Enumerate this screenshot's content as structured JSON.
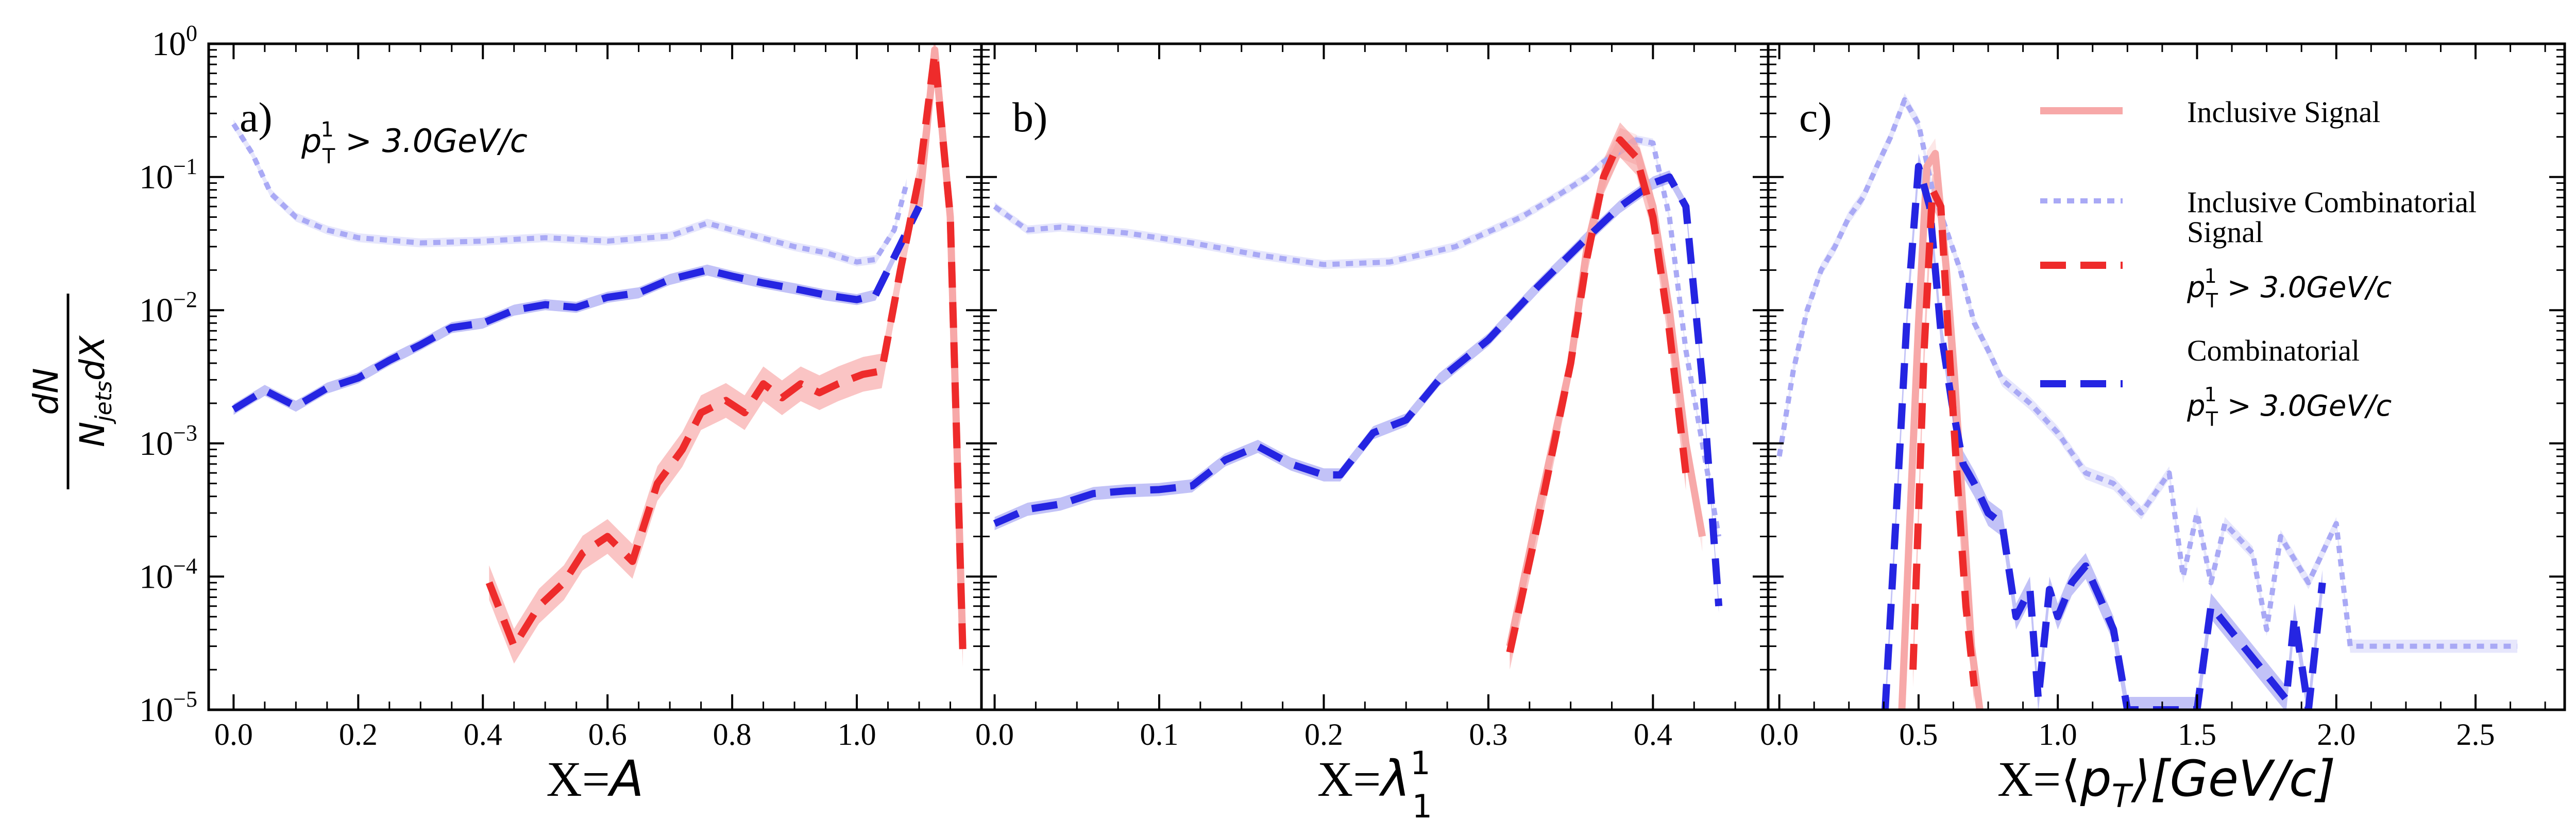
{
  "figure": {
    "ylabel_num": "dN",
    "ylabel_den": "N_jets dX",
    "ylabel_den_main": "N",
    "ylabel_den_sub": "jets",
    "ylabel_den_tail": "dX"
  },
  "styles": {
    "inclusive_signal": {
      "color": "#f7a8a8",
      "dash": "solid"
    },
    "inclusive_combinatorial": {
      "color": "#a9a9f5",
      "dash": "dotted"
    },
    "signal": {
      "color": "#ee2b2b",
      "dash": "dashed"
    },
    "combinatorial": {
      "color": "#2525e2",
      "dash": "dashed"
    }
  },
  "legend": {
    "items": [
      {
        "key": "inclusive_signal",
        "line1": "Inclusive Signal"
      },
      {
        "key": "inclusive_combinatorial",
        "line1": "Inclusive Combinatorial"
      },
      {
        "key": "signal",
        "line1": "Signal",
        "cut": "p_T^1 > 3.0GeV/c"
      },
      {
        "key": "combinatorial",
        "line1": "Combinatorial",
        "cut": "p_T^1 > 3.0GeV/c"
      }
    ],
    "cut_parts": {
      "p": "p",
      "sub": "T",
      "sup": "1",
      "rest": " > 3.0GeV/c"
    }
  },
  "chart_data": [
    {
      "type": "line",
      "panel_label": "a)",
      "annotation": "p_T^1 > 3.0GeV/c",
      "title": "",
      "xlabel": "X=A",
      "xlabel_parts": {
        "prefix": "X=",
        "var": "A"
      },
      "ylabel": "dN / (N_jets dX)",
      "yscale": "log",
      "xlim": [
        -0.04,
        1.2
      ],
      "ylim": [
        1e-05,
        1
      ],
      "xticks": [
        0.0,
        0.2,
        0.4,
        0.6,
        0.8,
        1.0
      ],
      "xtick_labels": [
        "0.0",
        "0.2",
        "0.4",
        "0.6",
        "0.8",
        "1.0"
      ],
      "ytick_labels": [
        {
          "base": "10",
          "exp": "0"
        },
        {
          "base": "10",
          "exp": "−1"
        },
        {
          "base": "10",
          "exp": "−2"
        },
        {
          "base": "10",
          "exp": "−3"
        },
        {
          "base": "10",
          "exp": "−4"
        },
        {
          "base": "10",
          "exp": "−5"
        }
      ],
      "series": [
        {
          "key": "inclusive_signal",
          "name": "Inclusive Signal",
          "x": [
            1.1,
            1.125,
            1.15,
            1.17
          ],
          "y": [
            0.06,
            0.9,
            0.05,
            3e-05
          ],
          "band": 0.3
        },
        {
          "key": "inclusive_combinatorial",
          "name": "Inclusive Combinatorial",
          "x": [
            0.0,
            0.03,
            0.06,
            0.1,
            0.15,
            0.2,
            0.3,
            0.4,
            0.5,
            0.6,
            0.7,
            0.76,
            0.8,
            0.9,
            0.95,
            1.0,
            1.03,
            1.06,
            1.08
          ],
          "y": [
            0.25,
            0.15,
            0.075,
            0.05,
            0.04,
            0.035,
            0.032,
            0.033,
            0.035,
            0.033,
            0.036,
            0.045,
            0.04,
            0.03,
            0.027,
            0.023,
            0.024,
            0.04,
            0.09
          ],
          "band": 0.08
        },
        {
          "key": "signal",
          "name": "Signal",
          "x": [
            0.41,
            0.45,
            0.49,
            0.53,
            0.56,
            0.6,
            0.64,
            0.68,
            0.72,
            0.75,
            0.79,
            0.82,
            0.85,
            0.88,
            0.91,
            0.94,
            0.97,
            1.01,
            1.04,
            1.07,
            1.1,
            1.125,
            1.15,
            1.17
          ],
          "y": [
            9e-05,
            3e-05,
            6e-05,
            9e-05,
            0.00015,
            0.0002,
            0.00013,
            0.0005,
            0.0009,
            0.0017,
            0.0021,
            0.0017,
            0.0028,
            0.0022,
            0.0028,
            0.0024,
            0.0028,
            0.0033,
            0.0035,
            0.02,
            0.1,
            0.85,
            0.05,
            2.8e-05
          ],
          "band": 0.35
        },
        {
          "key": "combinatorial",
          "name": "Combinatorial",
          "x": [
            0.0,
            0.05,
            0.1,
            0.15,
            0.2,
            0.25,
            0.3,
            0.35,
            0.4,
            0.45,
            0.5,
            0.55,
            0.6,
            0.65,
            0.7,
            0.76,
            0.8,
            0.85,
            0.9,
            0.95,
            1.0,
            1.03,
            1.06,
            1.1
          ],
          "y": [
            0.0018,
            0.0025,
            0.0019,
            0.0026,
            0.0031,
            0.0042,
            0.0055,
            0.0074,
            0.008,
            0.01,
            0.011,
            0.0105,
            0.0125,
            0.0135,
            0.017,
            0.02,
            0.018,
            0.016,
            0.0145,
            0.013,
            0.012,
            0.013,
            0.025,
            0.06
          ],
          "band": 0.1
        }
      ]
    },
    {
      "type": "line",
      "panel_label": "b)",
      "title": "",
      "xlabel": "X=λ_1^1",
      "xlabel_parts": {
        "prefix": "X=",
        "var": "λ",
        "sub": "1",
        "sup": "1"
      },
      "ylabel": "dN / (N_jets dX)",
      "yscale": "log",
      "xlim": [
        -0.008,
        0.47
      ],
      "ylim": [
        1e-05,
        1
      ],
      "xticks": [
        0.0,
        0.1,
        0.2,
        0.3,
        0.4
      ],
      "xtick_labels": [
        "0.0",
        "0.1",
        "0.2",
        "0.3",
        "0.4"
      ],
      "series": [
        {
          "key": "inclusive_signal",
          "name": "Inclusive Signal",
          "x": [
            0.313,
            0.33,
            0.35,
            0.36,
            0.37,
            0.38,
            0.39,
            0.4,
            0.41,
            0.42,
            0.43
          ],
          "y": [
            3e-05,
            0.0003,
            0.004,
            0.03,
            0.1,
            0.18,
            0.16,
            0.06,
            0.01,
            0.001,
            0.0002
          ],
          "band": 0.3
        },
        {
          "key": "inclusive_combinatorial",
          "name": "Inclusive Combinatorial",
          "x": [
            0.0,
            0.02,
            0.04,
            0.08,
            0.12,
            0.16,
            0.2,
            0.24,
            0.28,
            0.32,
            0.34,
            0.36,
            0.37,
            0.39,
            0.4,
            0.41,
            0.42,
            0.44
          ],
          "y": [
            0.06,
            0.04,
            0.042,
            0.038,
            0.032,
            0.026,
            0.022,
            0.023,
            0.03,
            0.05,
            0.07,
            0.1,
            0.13,
            0.19,
            0.18,
            0.05,
            0.005,
            0.0002
          ],
          "band": 0.08
        },
        {
          "key": "signal",
          "name": "Signal",
          "x": [
            0.313,
            0.33,
            0.35,
            0.36,
            0.37,
            0.38,
            0.39,
            0.4,
            0.41,
            0.42
          ],
          "y": [
            2.7e-05,
            0.00025,
            0.004,
            0.025,
            0.1,
            0.19,
            0.14,
            0.05,
            0.007,
            0.0006
          ],
          "band": 0.35
        },
        {
          "key": "combinatorial",
          "name": "Combinatorial",
          "x": [
            0.0,
            0.02,
            0.04,
            0.06,
            0.08,
            0.1,
            0.12,
            0.14,
            0.16,
            0.18,
            0.2,
            0.21,
            0.23,
            0.25,
            0.27,
            0.3,
            0.33,
            0.36,
            0.38,
            0.4,
            0.41,
            0.42,
            0.43,
            0.44
          ],
          "y": [
            0.00025,
            0.00032,
            0.00035,
            0.00042,
            0.00044,
            0.00045,
            0.00048,
            0.00075,
            0.00095,
            0.0007,
            0.00058,
            0.00058,
            0.0012,
            0.0015,
            0.003,
            0.006,
            0.015,
            0.035,
            0.06,
            0.09,
            0.1,
            0.06,
            0.003,
            6e-05
          ],
          "band": 0.12
        }
      ]
    },
    {
      "type": "line",
      "panel_label": "c)",
      "title": "",
      "xlabel": "X=⟨p_T⟩[GeV/c]",
      "xlabel_parts": {
        "prefix": "X=",
        "open": "⟨",
        "var": "p",
        "sub": "T",
        "close": "⟩[GeV/c]"
      },
      "ylabel": "dN / (N_jets dX)",
      "yscale": "log",
      "xlim": [
        -0.04,
        2.82
      ],
      "ylim": [
        1e-05,
        1
      ],
      "xticks": [
        0.0,
        0.5,
        1.0,
        1.5,
        2.0,
        2.5
      ],
      "xtick_labels": [
        "0.0",
        "0.5",
        "1.0",
        "1.5",
        "2.0",
        "2.5"
      ],
      "series": [
        {
          "key": "inclusive_signal",
          "name": "Inclusive Signal",
          "x": [
            0.44,
            0.47,
            0.5,
            0.53,
            0.56,
            0.6,
            0.63,
            0.66,
            0.69,
            0.72
          ],
          "y": [
            1e-05,
            0.0003,
            0.008,
            0.12,
            0.15,
            0.02,
            0.003,
            0.0003,
            3e-05,
            1e-05
          ],
          "band": 0.3
        },
        {
          "key": "inclusive_combinatorial",
          "name": "Inclusive Combinatorial",
          "x": [
            0.0,
            0.05,
            0.1,
            0.15,
            0.2,
            0.25,
            0.3,
            0.35,
            0.4,
            0.45,
            0.5,
            0.55,
            0.6,
            0.65,
            0.7,
            0.75,
            0.8,
            0.9,
            1.0,
            1.1,
            1.2,
            1.3,
            1.4,
            1.45,
            1.5,
            1.55,
            1.6,
            1.7,
            1.75,
            1.8,
            1.9,
            2.0,
            2.05,
            2.1,
            2.65
          ],
          "y": [
            0.0008,
            0.0035,
            0.01,
            0.02,
            0.03,
            0.05,
            0.07,
            0.12,
            0.2,
            0.38,
            0.25,
            0.08,
            0.04,
            0.02,
            0.008,
            0.005,
            0.003,
            0.002,
            0.0012,
            0.0006,
            0.0005,
            0.0003,
            0.0006,
            0.0001,
            0.0003,
            9e-05,
            0.00025,
            0.00015,
            4e-05,
            0.0002,
            9e-05,
            0.00025,
            3e-05,
            3e-05,
            3e-05
          ],
          "band": 0.12
        },
        {
          "key": "signal",
          "name": "Signal",
          "x": [
            0.48,
            0.5,
            0.52,
            0.55,
            0.58,
            0.61,
            0.64,
            0.67,
            0.7
          ],
          "y": [
            2e-05,
            0.0003,
            0.005,
            0.08,
            0.06,
            0.005,
            0.0005,
            6e-05,
            1.5e-05
          ],
          "band": 0.35
        },
        {
          "key": "combinatorial",
          "name": "Combinatorial",
          "x": [
            0.38,
            0.42,
            0.46,
            0.5,
            0.54,
            0.58,
            0.62,
            0.66,
            0.7,
            0.75,
            0.8,
            0.85,
            0.9,
            0.93,
            0.97,
            1.0,
            1.05,
            1.1,
            1.15,
            1.2,
            1.25,
            1.5,
            1.55,
            1.82,
            1.85,
            1.9,
            1.95
          ],
          "y": [
            1e-05,
            0.0003,
            0.01,
            0.12,
            0.06,
            0.007,
            0.002,
            0.0007,
            0.0005,
            0.0003,
            0.00025,
            5e-05,
            8e-05,
            1.2e-05,
            8e-05,
            5e-05,
            9e-05,
            0.00012,
            7e-05,
            4e-05,
            1e-05,
            1e-05,
            6e-05,
            1.2e-05,
            5e-05,
            1e-05,
            9e-05
          ],
          "band": 0.25
        }
      ]
    }
  ]
}
